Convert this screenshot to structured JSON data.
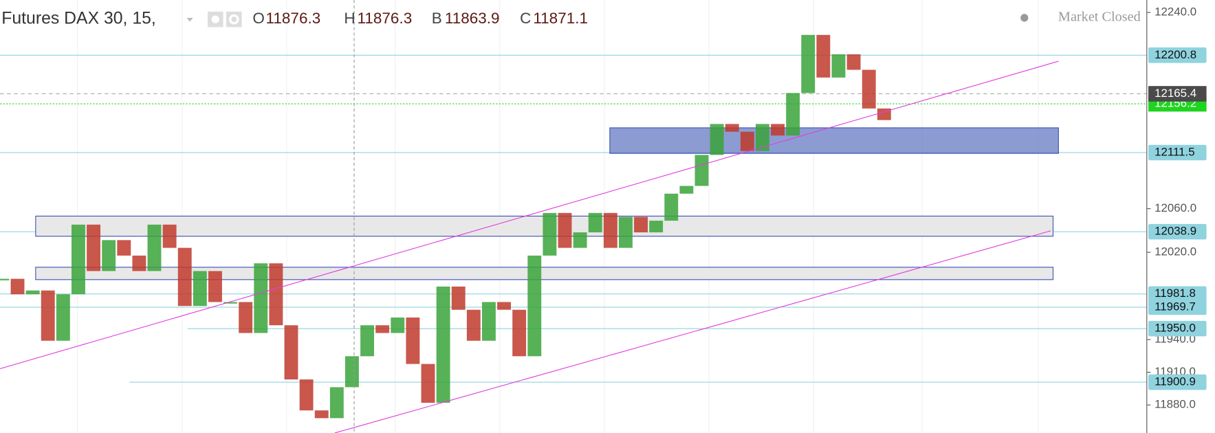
{
  "chart_data": {
    "type": "line",
    "title": "Futures DAX 30, 15,",
    "ohlc": [
      {
        "label": "O",
        "value": 11876.3
      },
      {
        "label": "H",
        "value": 11876.3
      },
      {
        "label": "B",
        "value": 11863.9
      },
      {
        "label": "C",
        "value": 11871.1
      }
    ],
    "status": "Market Closed",
    "ylim": [
      11854.3,
      12251.4
    ],
    "yticks": [
      {
        "value": 12240,
        "label": "12240.0"
      },
      {
        "value": 12060,
        "label": "12060.0"
      },
      {
        "value": 12020,
        "label": "12020.0"
      },
      {
        "value": 11940,
        "label": "11940.0"
      },
      {
        "value": 11910,
        "label": "11910.0"
      },
      {
        "value": 11880,
        "label": "11880.0"
      }
    ],
    "level_color": "#8fd3df",
    "levels": [
      {
        "value": 12200.8,
        "label": "12200.8"
      },
      {
        "value": 12111.5,
        "label": "12111.5"
      },
      {
        "value": 12038.9,
        "label": "12038.9"
      },
      {
        "value": 11981.8,
        "label": "11981.8"
      },
      {
        "value": 11969.7,
        "label": "11969.7"
      },
      {
        "value": 11950.0,
        "label": "11950.0"
      },
      {
        "value": 11900.9,
        "label": "11900.9"
      }
    ],
    "bid_price": {
      "value": 12156.2,
      "label": "12156.2",
      "color": "#1ed41e"
    },
    "last_price": {
      "value": 12165.4,
      "label": "12165.4",
      "color": "#4a4a4a"
    },
    "up_color": "#3aa33a",
    "down_color": "#c0392b",
    "values": [
      11995.7,
      11981.5,
      11985.0,
      11938.9,
      11981.5,
      12045.4,
      12002.8,
      12031.2,
      12017.0,
      12002.8,
      12045.4,
      12024.1,
      11970.8,
      12002.8,
      11974.4,
      11974.4,
      11946.0,
      12009.9,
      11953.1,
      11903.4,
      11875.0,
      11867.9,
      11896.3,
      11924.7,
      11953.1,
      11946.0,
      11960.2,
      11917.6,
      11882.0,
      11988.6,
      11967.3,
      11938.9,
      11974.4,
      11967.3,
      11924.7,
      12017.0,
      12056.1,
      12024.1,
      12038.3,
      12056.1,
      12024.1,
      12052.5,
      12038.3,
      12049.0,
      12073.8,
      12080.9,
      12109.3,
      12137.7,
      12130.6,
      12112.9,
      12137.7,
      12127.1,
      12166.1,
      12219.4,
      12180.3,
      12201.6,
      12187.4,
      12151.9,
      12141.3
    ]
  }
}
